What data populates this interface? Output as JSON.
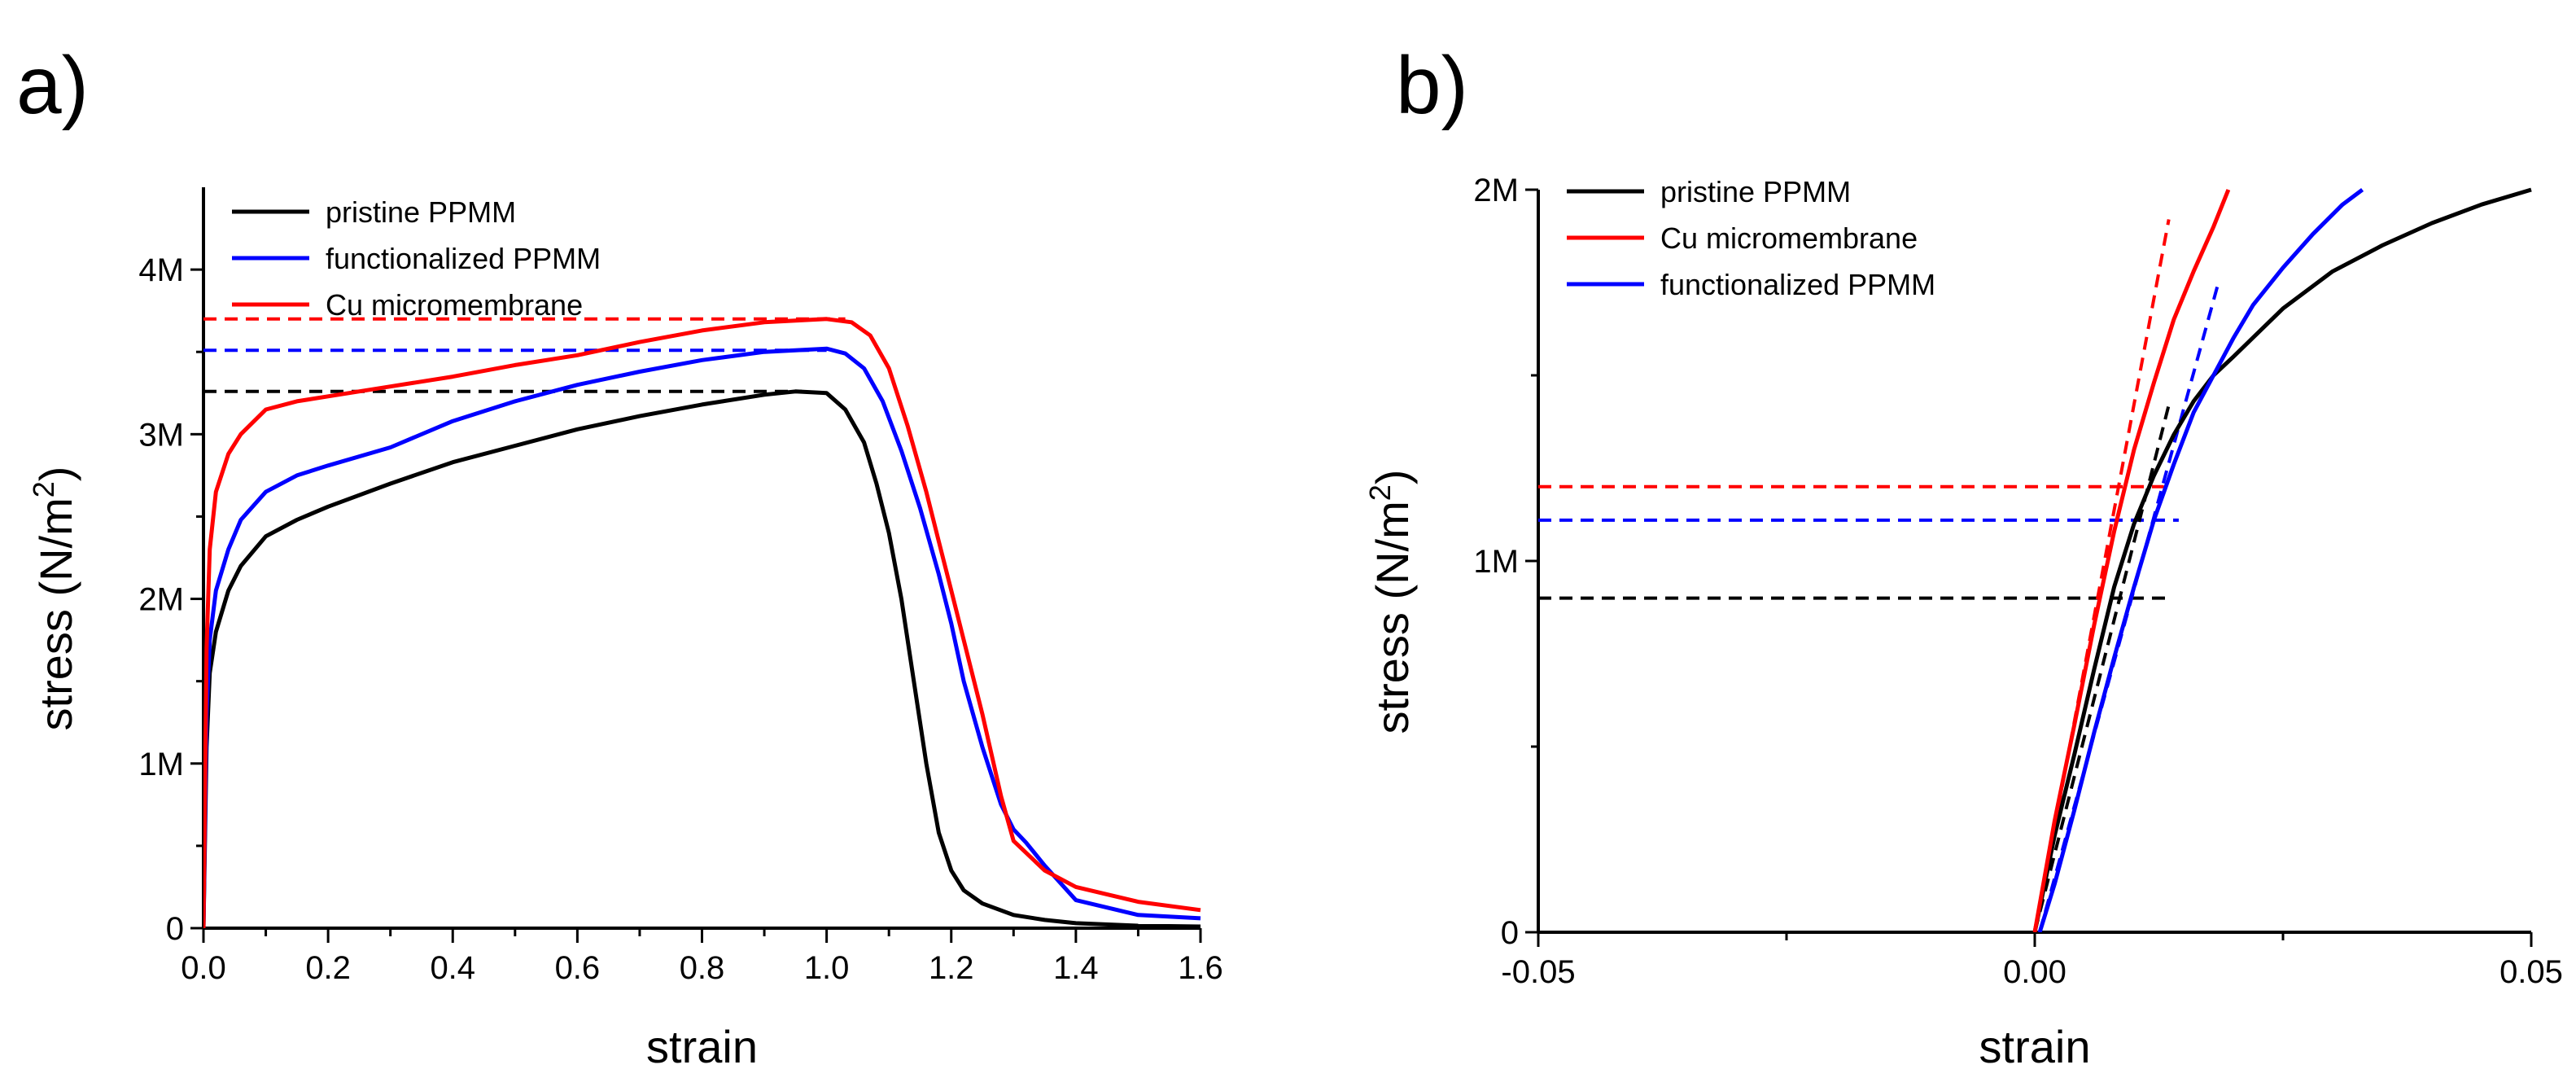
{
  "panels": {
    "a": "a)",
    "b": "b)"
  },
  "colors": {
    "black": "#000000",
    "red": "#ff0000",
    "blue": "#0000ff"
  },
  "chart_data": [
    {
      "id": "a",
      "type": "line",
      "title": "",
      "xlabel": "strain",
      "ylabel_main": "stress (N/m",
      "ylabel_sup": "2",
      "ylabel_end": ")",
      "xlim": [
        0,
        1.6
      ],
      "ylim": [
        0,
        4500000
      ],
      "xticks": [
        {
          "v": 0,
          "label": "0.0"
        },
        {
          "v": 0.2,
          "label": "0.2"
        },
        {
          "v": 0.4,
          "label": "0.4"
        },
        {
          "v": 0.6,
          "label": "0.6"
        },
        {
          "v": 0.8,
          "label": "0.8"
        },
        {
          "v": 1.0,
          "label": "1.0"
        },
        {
          "v": 1.2,
          "label": "1.2"
        },
        {
          "v": 1.4,
          "label": "1.4"
        },
        {
          "v": 1.6,
          "label": "1.6"
        }
      ],
      "xminor": [
        0.1,
        0.3,
        0.5,
        0.7,
        0.9,
        1.1,
        1.3,
        1.5
      ],
      "yticks": [
        {
          "v": 0,
          "label": "0"
        },
        {
          "v": 1000000,
          "label": "1M"
        },
        {
          "v": 2000000,
          "label": "2M"
        },
        {
          "v": 3000000,
          "label": "3M"
        },
        {
          "v": 4000000,
          "label": "4M"
        }
      ],
      "yminor": [
        500000,
        1500000,
        2500000,
        3500000
      ],
      "legend": {
        "position": "top-left",
        "entries": [
          {
            "name": "pristine PPMM",
            "color": "#000000"
          },
          {
            "name": "functionalized PPMM",
            "color": "#0000ff"
          },
          {
            "name": "Cu micromembrane",
            "color": "#ff0000"
          }
        ]
      },
      "series": [
        {
          "name": "pristine PPMM",
          "color": "#000000",
          "x": [
            0,
            0.005,
            0.01,
            0.02,
            0.04,
            0.06,
            0.1,
            0.15,
            0.2,
            0.3,
            0.4,
            0.5,
            0.6,
            0.7,
            0.8,
            0.9,
            0.95,
            1.0,
            1.03,
            1.06,
            1.08,
            1.1,
            1.12,
            1.14,
            1.16,
            1.18,
            1.2,
            1.22,
            1.25,
            1.3,
            1.35,
            1.4,
            1.5,
            1.6
          ],
          "y": [
            0,
            1100000,
            1550000,
            1800000,
            2050000,
            2200000,
            2380000,
            2480000,
            2560000,
            2700000,
            2830000,
            2930000,
            3030000,
            3110000,
            3180000,
            3240000,
            3260000,
            3250000,
            3150000,
            2950000,
            2700000,
            2400000,
            2000000,
            1500000,
            1000000,
            580000,
            350000,
            230000,
            150000,
            80000,
            50000,
            30000,
            15000,
            10000
          ]
        },
        {
          "name": "functionalized PPMM",
          "color": "#0000ff",
          "x": [
            0,
            0.005,
            0.01,
            0.02,
            0.04,
            0.06,
            0.1,
            0.15,
            0.2,
            0.3,
            0.4,
            0.5,
            0.6,
            0.7,
            0.8,
            0.9,
            1.0,
            1.03,
            1.06,
            1.09,
            1.12,
            1.15,
            1.18,
            1.2,
            1.22,
            1.25,
            1.28,
            1.3,
            1.32,
            1.35,
            1.4,
            1.5,
            1.6
          ],
          "y": [
            0,
            1300000,
            1750000,
            2050000,
            2300000,
            2480000,
            2650000,
            2750000,
            2810000,
            2920000,
            3080000,
            3200000,
            3300000,
            3380000,
            3450000,
            3500000,
            3520000,
            3490000,
            3400000,
            3200000,
            2900000,
            2550000,
            2150000,
            1850000,
            1500000,
            1100000,
            750000,
            600000,
            520000,
            380000,
            170000,
            80000,
            60000
          ]
        },
        {
          "name": "Cu micromembrane",
          "color": "#ff0000",
          "x": [
            0,
            0.005,
            0.01,
            0.02,
            0.04,
            0.06,
            0.1,
            0.15,
            0.2,
            0.3,
            0.4,
            0.5,
            0.6,
            0.7,
            0.8,
            0.9,
            1.0,
            1.04,
            1.07,
            1.1,
            1.13,
            1.16,
            1.18,
            1.2,
            1.22,
            1.25,
            1.28,
            1.3,
            1.35,
            1.4,
            1.5,
            1.6
          ],
          "y": [
            0,
            1700000,
            2300000,
            2650000,
            2880000,
            3000000,
            3150000,
            3200000,
            3230000,
            3290000,
            3350000,
            3420000,
            3480000,
            3560000,
            3630000,
            3680000,
            3700000,
            3680000,
            3600000,
            3400000,
            3050000,
            2650000,
            2350000,
            2050000,
            1750000,
            1300000,
            800000,
            530000,
            350000,
            250000,
            160000,
            110000
          ]
        }
      ],
      "reference_lines": [
        {
          "color": "#ff0000",
          "y": 3700000,
          "x_from": 0,
          "x_to": 1.03
        },
        {
          "color": "#0000ff",
          "y": 3510000,
          "x_from": 0,
          "x_to": 1.0
        },
        {
          "color": "#000000",
          "y": 3260000,
          "x_from": 0,
          "x_to": 0.96
        }
      ]
    },
    {
      "id": "b",
      "type": "line",
      "title": "",
      "xlabel": "strain",
      "ylabel_main": "stress (N/m",
      "ylabel_sup": "2",
      "ylabel_end": ")",
      "xlim": [
        -0.05,
        0.05
      ],
      "ylim": [
        0,
        2000000
      ],
      "xticks": [
        {
          "v": -0.05,
          "label": "-0.05"
        },
        {
          "v": 0,
          "label": "0.00"
        },
        {
          "v": 0.05,
          "label": "0.05"
        }
      ],
      "xminor": [
        -0.025,
        0.025
      ],
      "yticks": [
        {
          "v": 0,
          "label": "0"
        },
        {
          "v": 1000000,
          "label": "1M"
        },
        {
          "v": 2000000,
          "label": "2M"
        }
      ],
      "yminor": [
        500000,
        1500000
      ],
      "legend": {
        "position": "top-left",
        "entries": [
          {
            "name": "pristine PPMM",
            "color": "#000000"
          },
          {
            "name": "Cu micromembrane",
            "color": "#ff0000"
          },
          {
            "name": "functionalized PPMM",
            "color": "#0000ff"
          }
        ]
      },
      "series": [
        {
          "name": "pristine PPMM",
          "color": "#000000",
          "x": [
            0,
            0.002,
            0.004,
            0.006,
            0.008,
            0.01,
            0.012,
            0.014,
            0.016,
            0.018,
            0.02,
            0.025,
            0.03,
            0.035,
            0.04,
            0.045,
            0.05
          ],
          "y": [
            0,
            260000,
            480000,
            710000,
            930000,
            1100000,
            1230000,
            1340000,
            1430000,
            1500000,
            1550000,
            1680000,
            1780000,
            1850000,
            1910000,
            1960000,
            2000000
          ]
        },
        {
          "name": "Cu micromembrane",
          "color": "#ff0000",
          "x": [
            0,
            0.002,
            0.004,
            0.006,
            0.008,
            0.01,
            0.012,
            0.014,
            0.016,
            0.018,
            0.0195
          ],
          "y": [
            0,
            300000,
            560000,
            830000,
            1080000,
            1300000,
            1480000,
            1650000,
            1780000,
            1900000,
            2000000
          ]
        },
        {
          "name": "functionalized PPMM",
          "color": "#0000ff",
          "x": [
            0.0005,
            0.002,
            0.004,
            0.006,
            0.008,
            0.01,
            0.012,
            0.014,
            0.016,
            0.018,
            0.02,
            0.022,
            0.025,
            0.028,
            0.031,
            0.033
          ],
          "y": [
            0,
            130000,
            330000,
            540000,
            740000,
            930000,
            1110000,
            1260000,
            1400000,
            1500000,
            1600000,
            1690000,
            1790000,
            1880000,
            1960000,
            2000000
          ]
        }
      ],
      "reference_lines": [
        {
          "color": "#ff0000",
          "y": 1200000,
          "x_from": -0.05,
          "x_to": 0.013
        },
        {
          "color": "#0000ff",
          "y": 1110000,
          "x_from": -0.05,
          "x_to": 0.0145
        },
        {
          "color": "#000000",
          "y": 900000,
          "x_from": -0.05,
          "x_to": 0.0135
        },
        {
          "color": "#ff0000",
          "x": [
            0.0,
            0.0135
          ],
          "y": [
            0,
            1920000
          ]
        },
        {
          "color": "#000000",
          "x": [
            0.0,
            0.0135
          ],
          "y": [
            0,
            1420000
          ]
        },
        {
          "color": "#0000ff",
          "x": [
            0.0005,
            0.0185
          ],
          "y": [
            0,
            1750000
          ]
        }
      ]
    }
  ]
}
